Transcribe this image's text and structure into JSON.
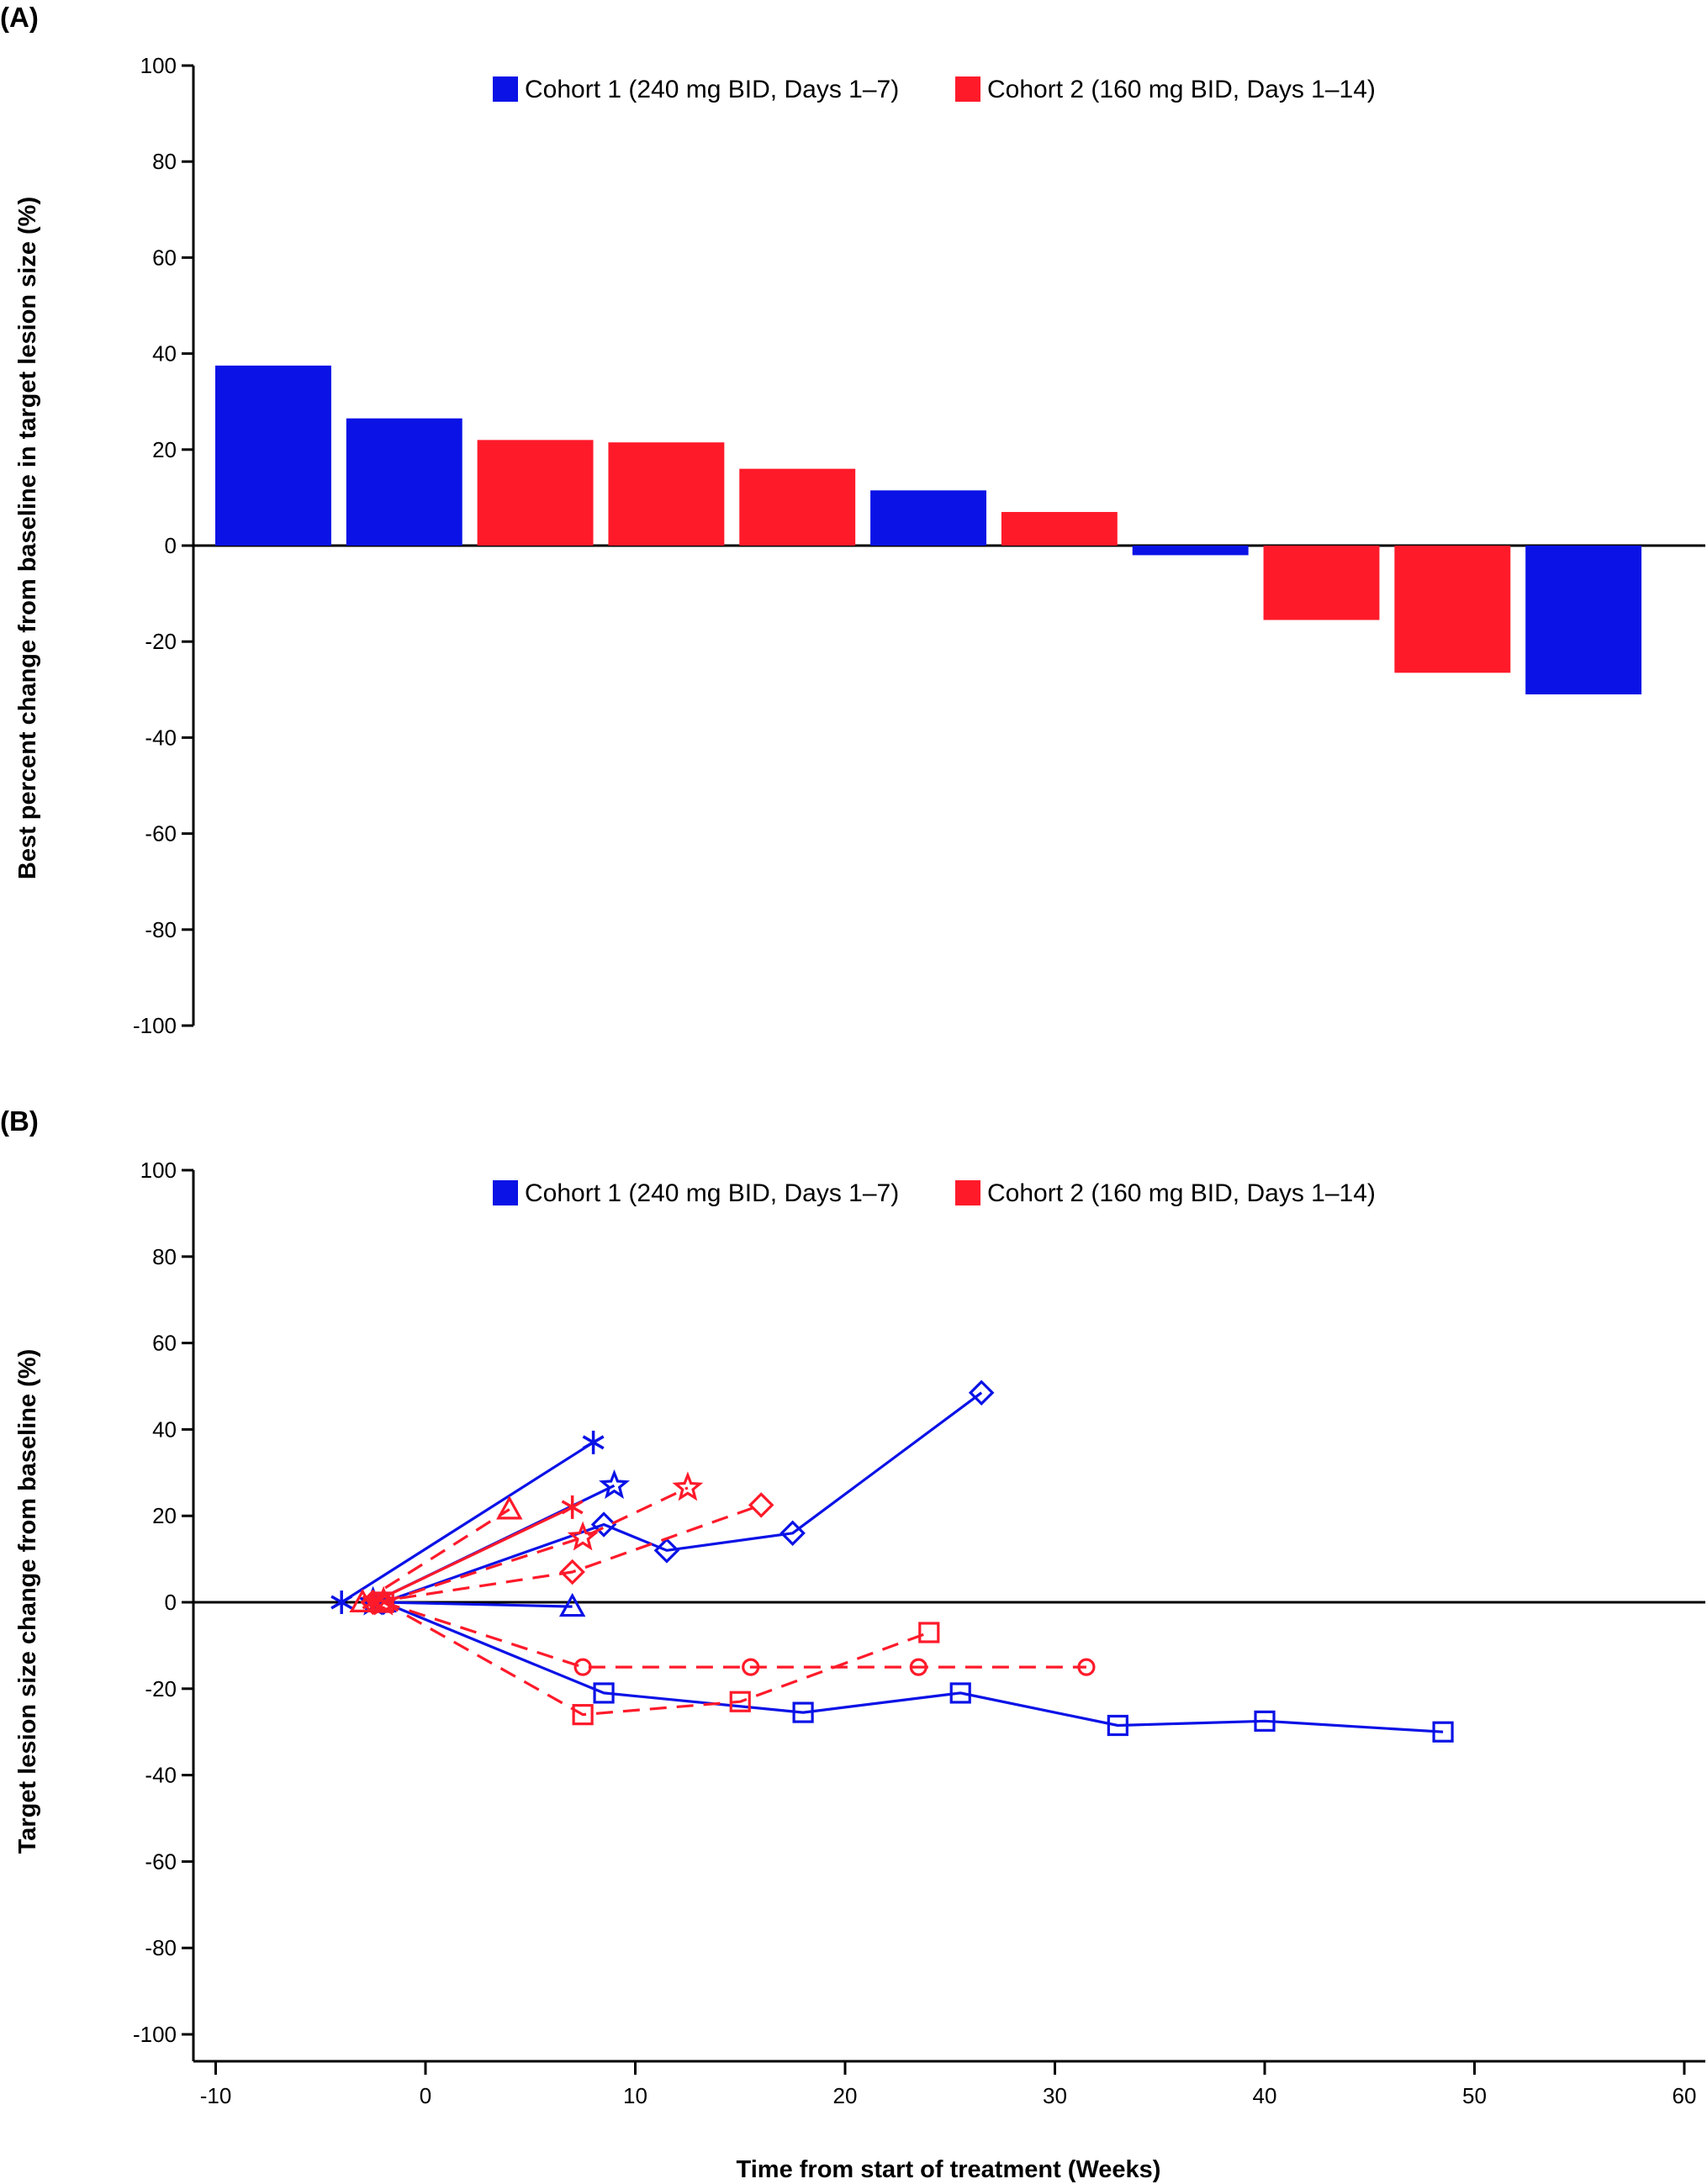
{
  "chart_data": [
    {
      "panel": "(A)",
      "type": "bar",
      "ylabel": "Best percent change from baseline in target lesion size (%)",
      "xlabel": "",
      "ylim": [
        -100,
        100
      ],
      "yticks": [
        100,
        80,
        60,
        40,
        20,
        0,
        -20,
        -40,
        -60,
        -80,
        -100
      ],
      "legend_position": "top",
      "legend": [
        {
          "label": "Cohort 1 (240 mg BID, Days 1–7)",
          "color": "#0a12e6"
        },
        {
          "label": "Cohort 2 (160 mg BID, Days 1–14)",
          "color": "#ff1a2a"
        }
      ],
      "bars": [
        {
          "cohort": 1,
          "value": 37.5
        },
        {
          "cohort": 1,
          "value": 26.5
        },
        {
          "cohort": 2,
          "value": 22
        },
        {
          "cohort": 2,
          "value": 21.5
        },
        {
          "cohort": 2,
          "value": 16
        },
        {
          "cohort": 1,
          "value": 11.5
        },
        {
          "cohort": 2,
          "value": 7
        },
        {
          "cohort": 1,
          "value": -2
        },
        {
          "cohort": 2,
          "value": -15.5
        },
        {
          "cohort": 2,
          "value": -26.5
        },
        {
          "cohort": 1,
          "value": -31
        }
      ]
    },
    {
      "panel": "(B)",
      "type": "line",
      "ylabel": "Target lesion size change from baseline (%)",
      "xlabel": "Time from start of treatment (Weeks)",
      "xlim": [
        -10,
        60
      ],
      "ylim": [
        -100,
        100
      ],
      "xticks": [
        -10,
        0,
        10,
        20,
        30,
        40,
        50,
        60
      ],
      "yticks": [
        100,
        80,
        60,
        40,
        20,
        0,
        -20,
        -40,
        -60,
        -80,
        -100
      ],
      "legend_position": "top",
      "legend": [
        {
          "label": "Cohort 1 (240 mg BID, Days 1–7)",
          "color": "#0a12e6"
        },
        {
          "label": "Cohort 2 (160 mg BID, Days 1–14)",
          "color": "#ff1a2a"
        }
      ],
      "series": [
        {
          "cohort": 1,
          "marker": "asterisk",
          "style": "solid",
          "color": "#0a12e6",
          "points": [
            [
              -4,
              0
            ],
            [
              8,
              37
            ]
          ]
        },
        {
          "cohort": 1,
          "marker": "star",
          "style": "solid",
          "color": "#0a12e6",
          "points": [
            [
              -2.5,
              0
            ],
            [
              9,
              27
            ]
          ]
        },
        {
          "cohort": 1,
          "marker": "diamond",
          "style": "solid",
          "color": "#0a12e6",
          "points": [
            [
              -2,
              0
            ],
            [
              8.5,
              18
            ],
            [
              11.5,
              12
            ],
            [
              17.5,
              16
            ],
            [
              26.5,
              48.5
            ]
          ]
        },
        {
          "cohort": 1,
          "marker": "triangle",
          "style": "solid",
          "color": "#0a12e6",
          "points": [
            [
              -2,
              0
            ],
            [
              7,
              -1
            ]
          ]
        },
        {
          "cohort": 1,
          "marker": "square",
          "style": "solid",
          "color": "#0a12e6",
          "points": [
            [
              -2,
              0
            ],
            [
              8.5,
              -21
            ],
            [
              18,
              -25.5
            ],
            [
              25.5,
              -21
            ],
            [
              33,
              -28.5
            ],
            [
              40,
              -27.5
            ],
            [
              48.5,
              -30
            ]
          ]
        },
        {
          "cohort": 2,
          "marker": "asterisk",
          "style": "solid",
          "color": "#ff1a2a",
          "points": [
            [
              -2.5,
              0
            ],
            [
              7,
              22
            ]
          ]
        },
        {
          "cohort": 2,
          "marker": "star",
          "style": "dashed",
          "color": "#ff1a2a",
          "points": [
            [
              -2,
              0
            ],
            [
              7.5,
              15
            ],
            [
              12.5,
              26.5
            ]
          ]
        },
        {
          "cohort": 2,
          "marker": "triangle",
          "style": "dashed",
          "color": "#ff1a2a",
          "points": [
            [
              -3,
              0
            ],
            [
              4,
              21.5
            ]
          ]
        },
        {
          "cohort": 2,
          "marker": "diamond",
          "style": "dashed",
          "color": "#ff1a2a",
          "points": [
            [
              -2.5,
              0
            ],
            [
              7,
              7
            ],
            [
              16,
              22.5
            ]
          ]
        },
        {
          "cohort": 2,
          "marker": "circle",
          "style": "dashed",
          "color": "#ff1a2a",
          "points": [
            [
              -2,
              0
            ],
            [
              7.5,
              -15
            ],
            [
              15.5,
              -15
            ],
            [
              23.5,
              -15
            ],
            [
              31.5,
              -15
            ]
          ]
        },
        {
          "cohort": 2,
          "marker": "square",
          "style": "dashed",
          "color": "#ff1a2a",
          "points": [
            [
              -2,
              0
            ],
            [
              7.5,
              -26
            ],
            [
              15,
              -23
            ],
            [
              24,
              -7
            ]
          ]
        }
      ]
    }
  ]
}
